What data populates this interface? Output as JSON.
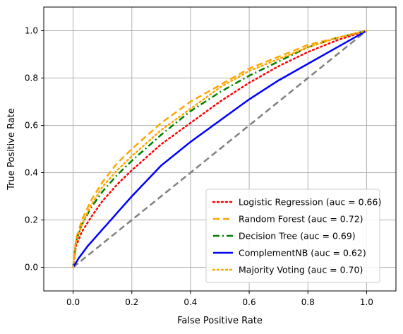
{
  "chart_data": {
    "type": "line",
    "title": "",
    "xlabel": "False Positive Rate",
    "ylabel": "True Positive Rate",
    "xlim": [
      -0.1,
      1.1
    ],
    "ylim": [
      -0.1,
      1.1
    ],
    "xticks": [
      "0.0",
      "0.2",
      "0.4",
      "0.6",
      "0.8",
      "1.0"
    ],
    "yticks": [
      "0.0",
      "0.2",
      "0.4",
      "0.6",
      "0.8",
      "1.0"
    ],
    "grid": true,
    "legend_position": "lower-right",
    "series": [
      {
        "name": "Logistic Regression (auc = 0.66)",
        "color": "#ff0000",
        "style": "dotted",
        "x": [
          0,
          0.01,
          0.03,
          0.06,
          0.1,
          0.15,
          0.2,
          0.3,
          0.4,
          0.5,
          0.6,
          0.7,
          0.8,
          0.9,
          1.0
        ],
        "y": [
          0,
          0.09,
          0.15,
          0.21,
          0.28,
          0.35,
          0.41,
          0.52,
          0.61,
          0.7,
          0.78,
          0.85,
          0.91,
          0.96,
          1.0
        ]
      },
      {
        "name": "Random Forest (auc = 0.72)",
        "color": "#ffa500",
        "style": "dashed",
        "x": [
          0,
          0.01,
          0.03,
          0.06,
          0.1,
          0.15,
          0.2,
          0.3,
          0.4,
          0.5,
          0.6,
          0.7,
          0.8,
          0.9,
          1.0
        ],
        "y": [
          0,
          0.12,
          0.2,
          0.28,
          0.36,
          0.44,
          0.5,
          0.61,
          0.7,
          0.77,
          0.84,
          0.89,
          0.94,
          0.97,
          1.0
        ]
      },
      {
        "name": "Decision Tree (auc = 0.69)",
        "color": "#008000",
        "style": "dashdot",
        "x": [
          0,
          0.01,
          0.03,
          0.06,
          0.1,
          0.15,
          0.2,
          0.3,
          0.4,
          0.5,
          0.6,
          0.7,
          0.8,
          0.9,
          1.0
        ],
        "y": [
          0,
          0.11,
          0.18,
          0.25,
          0.32,
          0.39,
          0.45,
          0.56,
          0.66,
          0.74,
          0.81,
          0.87,
          0.93,
          0.97,
          1.0
        ]
      },
      {
        "name": "ComplementNB (auc = 0.62)",
        "color": "#0000ff",
        "style": "solid",
        "x": [
          0,
          0.02,
          0.05,
          0.1,
          0.15,
          0.2,
          0.3,
          0.4,
          0.5,
          0.6,
          0.7,
          0.8,
          0.9,
          1.0
        ],
        "y": [
          0,
          0.04,
          0.09,
          0.16,
          0.23,
          0.3,
          0.43,
          0.53,
          0.62,
          0.71,
          0.79,
          0.86,
          0.93,
          1.0
        ]
      },
      {
        "name": "Majority Voting (auc = 0.70)",
        "color": "#ffa500",
        "style": "dotted",
        "x": [
          0,
          0.01,
          0.03,
          0.06,
          0.1,
          0.15,
          0.2,
          0.3,
          0.4,
          0.5,
          0.6,
          0.7,
          0.8,
          0.9,
          1.0
        ],
        "y": [
          0,
          0.11,
          0.18,
          0.26,
          0.34,
          0.41,
          0.47,
          0.58,
          0.67,
          0.76,
          0.83,
          0.88,
          0.93,
          0.97,
          1.0
        ]
      }
    ],
    "reference_line": {
      "color": "#808080",
      "style": "dashed",
      "x": [
        0,
        1
      ],
      "y": [
        0,
        1
      ]
    }
  }
}
